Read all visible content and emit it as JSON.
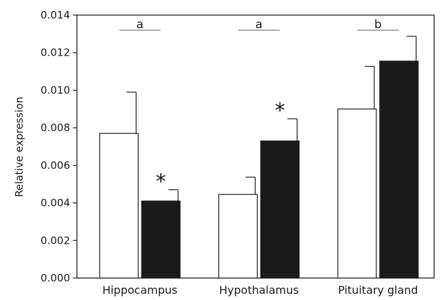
{
  "chart_data": {
    "type": "bar",
    "categories": [
      "Hippocampus",
      "Hypothalamus",
      "Pituitary gland"
    ],
    "series": [
      {
        "fill": "#ffffff",
        "values": [
          0.0077,
          0.00445,
          0.009
        ],
        "errors": [
          0.0022,
          0.00092,
          0.00227
        ]
      },
      {
        "fill": "#1a1a1a",
        "values": [
          0.0041,
          0.0073,
          0.01155
        ],
        "errors": [
          0.0006,
          0.00118,
          0.00132
        ]
      }
    ],
    "ylabel": "Relative expression",
    "ylim": [
      0,
      0.014
    ],
    "yticks": [
      "0.000",
      "0.002",
      "0.004",
      "0.006",
      "0.008",
      "0.010",
      "0.012",
      "0.014"
    ],
    "group_letters": [
      "a",
      "a",
      "b"
    ],
    "significance_marks": [
      {
        "category": 0,
        "series": 1,
        "label": "*"
      },
      {
        "category": 1,
        "series": 1,
        "label": "*"
      }
    ],
    "grid": false,
    "legend": "none"
  }
}
